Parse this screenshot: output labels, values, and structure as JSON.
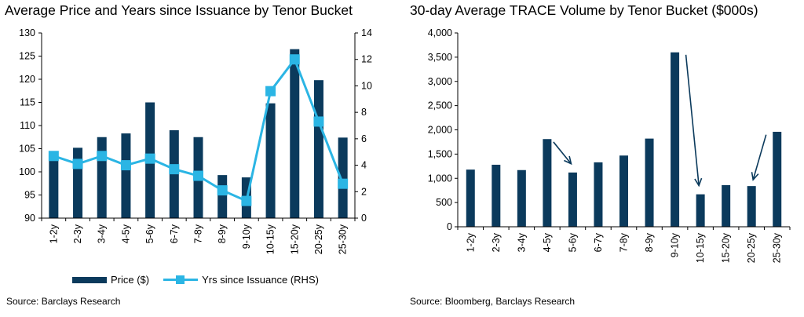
{
  "colors": {
    "bar": "#0b3a5c",
    "line": "#2bb5e4",
    "arrow": "#0b3a5c"
  },
  "left": {
    "title": "Average Price and Years since Issuance by Tenor Bucket",
    "source": "Source: Barclays Research",
    "legend": {
      "bar_label": "Price ($)",
      "line_label": "Yrs since Issuance (RHS)"
    }
  },
  "right": {
    "title": "30-day Average TRACE Volume by Tenor Bucket ($000s)",
    "source": "Source: Bloomberg, Barclays Research"
  },
  "chart_data": [
    {
      "type": "bar",
      "title": "Average Price and Years since Issuance by Tenor Bucket",
      "categories": [
        "1-2y",
        "2-3y",
        "3-4y",
        "4-5y",
        "5-6y",
        "6-7y",
        "7-8y",
        "8-9y",
        "9-10y",
        "10-15y",
        "15-20y",
        "20-25y",
        "25-30y"
      ],
      "series": [
        {
          "name": "Price ($)",
          "type": "bar",
          "axis": "left",
          "values": [
            103.7,
            105.2,
            107.5,
            108.3,
            115,
            109,
            107.5,
            99.3,
            98.8,
            114.8,
            126.5,
            119.8,
            107.4
          ]
        },
        {
          "name": "Yrs since Issuance (RHS)",
          "type": "line",
          "axis": "right",
          "values": [
            4.7,
            4.1,
            4.7,
            4.0,
            4.5,
            3.7,
            3.2,
            2.1,
            1.3,
            9.6,
            12.0,
            7.3,
            2.6
          ]
        }
      ],
      "ylim": [
        90,
        130
      ],
      "yticks": [
        "130",
        "125",
        "120",
        "115",
        "110",
        "105",
        "100",
        "95",
        "90"
      ],
      "y2lim": [
        0,
        14
      ],
      "y2ticks": [
        "14",
        "12",
        "10",
        "8",
        "6",
        "4",
        "2",
        "0"
      ],
      "legend_position": "bottom"
    },
    {
      "type": "bar",
      "title": "30-day Average TRACE Volume by Tenor Bucket ($000s)",
      "categories": [
        "1-2y",
        "2-3y",
        "3-4y",
        "4-5y",
        "5-6y",
        "6-7y",
        "7-8y",
        "8-9y",
        "9-10y",
        "10-15y",
        "15-20y",
        "20-25y",
        "25-30y"
      ],
      "values": [
        1180,
        1280,
        1170,
        1810,
        1120,
        1330,
        1470,
        1820,
        3600,
        670,
        860,
        840,
        1960
      ],
      "ylim": [
        0,
        4000
      ],
      "yticks": [
        "4,000",
        "3,500",
        "3,000",
        "2,500",
        "2,000",
        "1,500",
        "1,000",
        "500",
        "0"
      ],
      "annotations": [
        "arrow-4-5y-to-5-6y",
        "arrow-9-10y-to-10-15y",
        "arrow-20-25y-to-25-30y"
      ]
    }
  ]
}
